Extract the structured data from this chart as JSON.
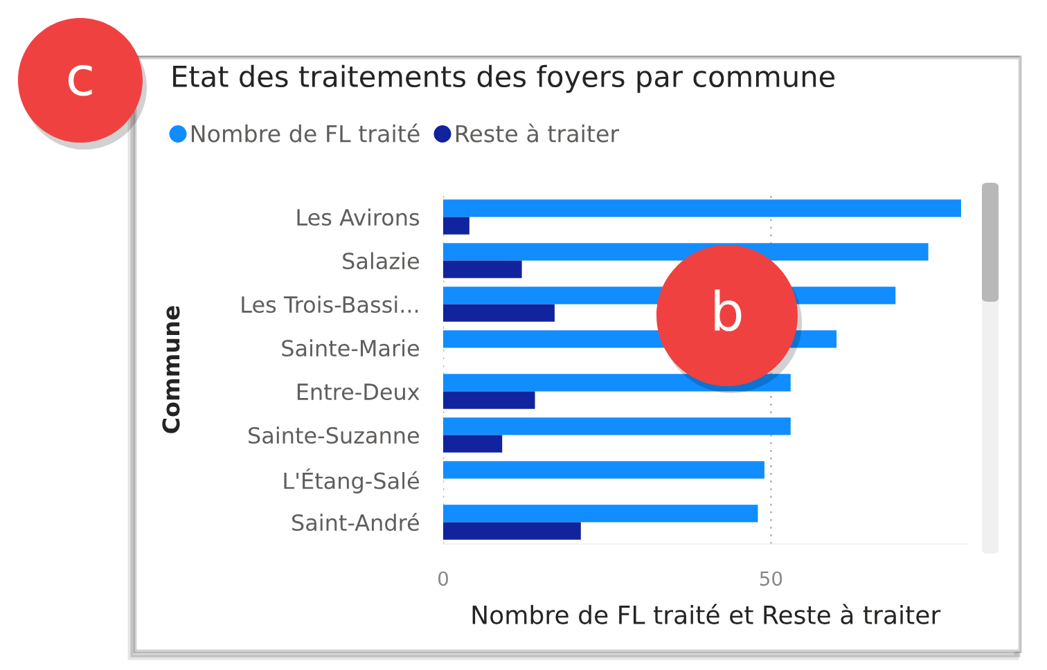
{
  "chart_data": {
    "type": "bar",
    "orientation": "horizontal",
    "title": "Etat des traitements des foyers par commune",
    "xlabel": "Nombre de FL traité et Reste à traiter",
    "ylabel": "Commune",
    "categories": [
      "Les Avirons",
      "Salazie",
      "Les Trois-Bassi...",
      "Sainte-Marie",
      "Entre-Deux",
      "Sainte-Suzanne",
      "L'Étang-Salé",
      "Saint-André"
    ],
    "series": [
      {
        "name": "Nombre de FL traité",
        "color": "#118dff",
        "values": [
          79,
          74,
          69,
          60,
          53,
          53,
          49,
          48
        ]
      },
      {
        "name": "Reste à traiter",
        "color": "#12239e",
        "values": [
          4,
          12,
          17,
          null,
          14,
          9,
          null,
          21
        ]
      }
    ],
    "xlim": [
      0,
      80
    ],
    "xticks": [
      0,
      50
    ],
    "grid": "x",
    "legend": "top left",
    "annotations": [
      "c",
      "b"
    ]
  }
}
